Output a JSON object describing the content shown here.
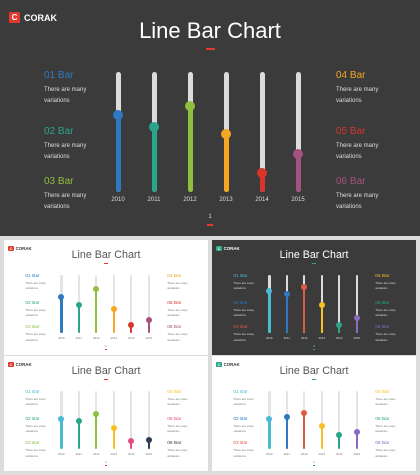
{
  "logo_text": "CORAK",
  "logo_mark": "C",
  "title": "Line Bar Chart",
  "page_number": "1",
  "chart_data": {
    "type": "bar",
    "categories": [
      "2010",
      "2011",
      "2012",
      "2013",
      "2014",
      "2015"
    ],
    "ylim": [
      0,
      100
    ],
    "values_main": [
      64,
      54,
      72,
      48,
      16,
      32
    ]
  },
  "items_main": [
    {
      "head": "01 Bar",
      "desc1": "There are many",
      "desc2": "variations",
      "color": "#2f79c2"
    },
    {
      "head": "02 Bar",
      "desc1": "There are many",
      "desc2": "variations",
      "color": "#2ba58a"
    },
    {
      "head": "03 Bar",
      "desc1": "There are many",
      "desc2": "variations",
      "color": "#8fbf3f"
    },
    {
      "head": "04 Bar",
      "desc1": "There are many",
      "desc2": "variations",
      "color": "#f5a623"
    },
    {
      "head": "05 Bar",
      "desc1": "There are many",
      "desc2": "variations",
      "color": "#d8342a"
    },
    {
      "head": "06 Bar",
      "desc1": "There are many",
      "desc2": "variations",
      "color": "#a4527f"
    }
  ],
  "thumbs": [
    {
      "theme": "light",
      "logo_color": "#e03a2f",
      "values": [
        62,
        48,
        76,
        42,
        14,
        22
      ],
      "colors": [
        "#2f79c2",
        "#2ba58a",
        "#8fbf3f",
        "#f5a623",
        "#d8342a",
        "#a4527f"
      ]
    },
    {
      "theme": "dark",
      "logo_color": "#2ba58a",
      "values": [
        72,
        68,
        80,
        48,
        14,
        26
      ],
      "colors": [
        "#4bbbd3",
        "#2f79c2",
        "#e05a43",
        "#f5c023",
        "#2ba58a",
        "#8b6ac4"
      ]
    },
    {
      "theme": "light",
      "logo_color": "#e03a2f",
      "values": [
        52,
        48,
        60,
        36,
        14,
        16
      ],
      "colors": [
        "#4bbbd3",
        "#2ba58a",
        "#8fbf3f",
        "#f5c023",
        "#e0507a",
        "#2c3e50"
      ]
    },
    {
      "theme": "light",
      "logo_color": "#2ba58a",
      "values": [
        52,
        56,
        62,
        40,
        24,
        30
      ],
      "colors": [
        "#4bbbd3",
        "#2f79c2",
        "#e05a43",
        "#f5c023",
        "#2ba58a",
        "#8b6ac4"
      ]
    }
  ]
}
